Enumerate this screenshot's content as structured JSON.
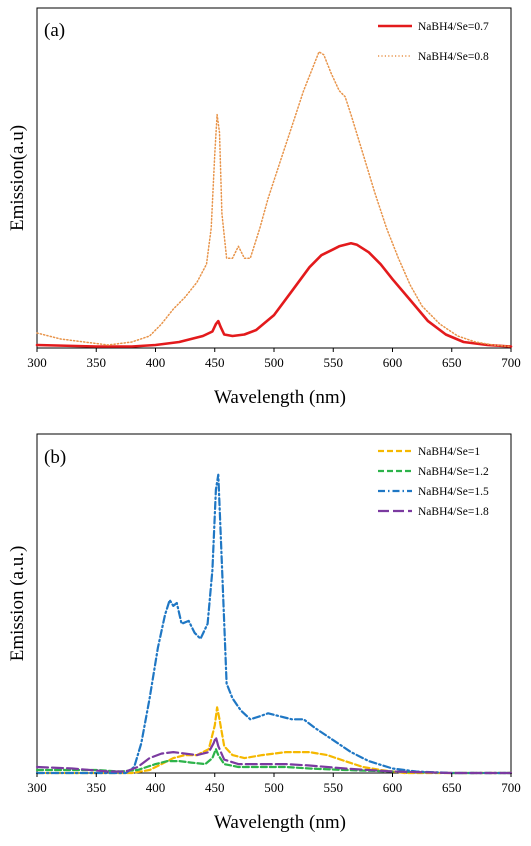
{
  "chart_data": [
    {
      "type": "line",
      "panel_label": "(a)",
      "xlabel": "Wavelength (nm)",
      "ylabel": "Emission(a.u)",
      "xlim": [
        300,
        700
      ],
      "ylim": [
        0,
        1
      ],
      "xticks": [
        300,
        350,
        400,
        450,
        500,
        550,
        600,
        650,
        700
      ],
      "grid": false,
      "legend_position": "top-right",
      "series": [
        {
          "name": "NaBH4/Se=0.7",
          "color": "#e31a1c",
          "style": "solid",
          "points": [
            [
              300,
              0.01
            ],
            [
              350,
              0.005
            ],
            [
              380,
              0.005
            ],
            [
              400,
              0.01
            ],
            [
              420,
              0.02
            ],
            [
              440,
              0.04
            ],
            [
              448,
              0.055
            ],
            [
              451,
              0.08
            ],
            [
              453,
              0.09
            ],
            [
              455,
              0.07
            ],
            [
              458,
              0.045
            ],
            [
              465,
              0.04
            ],
            [
              475,
              0.045
            ],
            [
              485,
              0.06
            ],
            [
              500,
              0.11
            ],
            [
              515,
              0.19
            ],
            [
              530,
              0.27
            ],
            [
              540,
              0.31
            ],
            [
              550,
              0.33
            ],
            [
              555,
              0.34
            ],
            [
              560,
              0.345
            ],
            [
              565,
              0.35
            ],
            [
              570,
              0.345
            ],
            [
              580,
              0.32
            ],
            [
              590,
              0.28
            ],
            [
              600,
              0.23
            ],
            [
              615,
              0.16
            ],
            [
              630,
              0.09
            ],
            [
              645,
              0.045
            ],
            [
              660,
              0.02
            ],
            [
              680,
              0.01
            ],
            [
              700,
              0.005
            ]
          ]
        },
        {
          "name": "NaBH4/Se=0.8",
          "color": "#e8944a",
          "style": "dotted",
          "points": [
            [
              300,
              0.05
            ],
            [
              320,
              0.03
            ],
            [
              340,
              0.02
            ],
            [
              360,
              0.01
            ],
            [
              380,
              0.02
            ],
            [
              395,
              0.04
            ],
            [
              405,
              0.08
            ],
            [
              415,
              0.13
            ],
            [
              425,
              0.17
            ],
            [
              435,
              0.22
            ],
            [
              443,
              0.28
            ],
            [
              447,
              0.4
            ],
            [
              450,
              0.65
            ],
            [
              452,
              0.78
            ],
            [
              454,
              0.72
            ],
            [
              456,
              0.45
            ],
            [
              460,
              0.3
            ],
            [
              465,
              0.3
            ],
            [
              470,
              0.34
            ],
            [
              475,
              0.3
            ],
            [
              480,
              0.3
            ],
            [
              488,
              0.4
            ],
            [
              495,
              0.5
            ],
            [
              505,
              0.62
            ],
            [
              515,
              0.74
            ],
            [
              525,
              0.86
            ],
            [
              533,
              0.94
            ],
            [
              538,
              0.99
            ],
            [
              542,
              0.98
            ],
            [
              548,
              0.92
            ],
            [
              555,
              0.86
            ],
            [
              560,
              0.84
            ],
            [
              565,
              0.78
            ],
            [
              575,
              0.65
            ],
            [
              585,
              0.52
            ],
            [
              595,
              0.4
            ],
            [
              605,
              0.3
            ],
            [
              615,
              0.21
            ],
            [
              625,
              0.14
            ],
            [
              640,
              0.08
            ],
            [
              655,
              0.04
            ],
            [
              670,
              0.02
            ],
            [
              685,
              0.01
            ],
            [
              700,
              0.005
            ]
          ]
        }
      ]
    },
    {
      "type": "line",
      "panel_label": "(b)",
      "xlabel": "Wavelength (nm)",
      "ylabel": "Emission (a.u.)",
      "xlim": [
        300,
        700
      ],
      "ylim": [
        0,
        1
      ],
      "xticks": [
        300,
        350,
        400,
        450,
        500,
        550,
        600,
        650,
        700
      ],
      "grid": false,
      "legend_position": "top-right",
      "series": [
        {
          "name": "NaBH4/Se=1",
          "color": "#f5b800",
          "style": "dash",
          "points": [
            [
              300,
              0.0
            ],
            [
              380,
              0.0
            ],
            [
              395,
              0.01
            ],
            [
              405,
              0.03
            ],
            [
              415,
              0.05
            ],
            [
              425,
              0.06
            ],
            [
              435,
              0.06
            ],
            [
              445,
              0.08
            ],
            [
              450,
              0.16
            ],
            [
              452,
              0.22
            ],
            [
              454,
              0.18
            ],
            [
              458,
              0.09
            ],
            [
              465,
              0.06
            ],
            [
              475,
              0.05
            ],
            [
              490,
              0.06
            ],
            [
              510,
              0.07
            ],
            [
              530,
              0.07
            ],
            [
              545,
              0.06
            ],
            [
              560,
              0.04
            ],
            [
              575,
              0.02
            ],
            [
              590,
              0.01
            ],
            [
              610,
              0.0
            ],
            [
              700,
              0.0
            ]
          ]
        },
        {
          "name": "NaBH4/Se=1.2",
          "color": "#2db34a",
          "style": "dash",
          "points": [
            [
              300,
              0.01
            ],
            [
              350,
              0.01
            ],
            [
              370,
              0.005
            ],
            [
              385,
              0.01
            ],
            [
              400,
              0.03
            ],
            [
              410,
              0.04
            ],
            [
              420,
              0.04
            ],
            [
              430,
              0.035
            ],
            [
              442,
              0.03
            ],
            [
              448,
              0.05
            ],
            [
              451,
              0.08
            ],
            [
              453,
              0.06
            ],
            [
              458,
              0.03
            ],
            [
              470,
              0.02
            ],
            [
              490,
              0.02
            ],
            [
              510,
              0.02
            ],
            [
              530,
              0.015
            ],
            [
              560,
              0.01
            ],
            [
              600,
              0.005
            ],
            [
              650,
              0.0
            ],
            [
              700,
              0.0
            ]
          ]
        },
        {
          "name": "NaBH4/Se=1.5",
          "color": "#1f77c4",
          "style": "dashdot",
          "points": [
            [
              300,
              0.0
            ],
            [
              375,
              0.0
            ],
            [
              382,
              0.02
            ],
            [
              388,
              0.1
            ],
            [
              395,
              0.25
            ],
            [
              402,
              0.42
            ],
            [
              408,
              0.53
            ],
            [
              412,
              0.58
            ],
            [
              415,
              0.56
            ],
            [
              418,
              0.57
            ],
            [
              422,
              0.5
            ],
            [
              428,
              0.51
            ],
            [
              433,
              0.47
            ],
            [
              438,
              0.45
            ],
            [
              444,
              0.5
            ],
            [
              448,
              0.68
            ],
            [
              451,
              0.95
            ],
            [
              453,
              1.0
            ],
            [
              456,
              0.7
            ],
            [
              460,
              0.3
            ],
            [
              465,
              0.25
            ],
            [
              472,
              0.21
            ],
            [
              480,
              0.18
            ],
            [
              488,
              0.19
            ],
            [
              495,
              0.2
            ],
            [
              505,
              0.19
            ],
            [
              515,
              0.18
            ],
            [
              525,
              0.18
            ],
            [
              535,
              0.15
            ],
            [
              550,
              0.11
            ],
            [
              565,
              0.07
            ],
            [
              580,
              0.04
            ],
            [
              600,
              0.015
            ],
            [
              620,
              0.005
            ],
            [
              650,
              0.0
            ],
            [
              700,
              0.0
            ]
          ]
        },
        {
          "name": "NaBH4/Se=1.8",
          "color": "#7b3aa0",
          "style": "longdash",
          "points": [
            [
              300,
              0.02
            ],
            [
              330,
              0.015
            ],
            [
              360,
              0.005
            ],
            [
              375,
              0.005
            ],
            [
              385,
              0.02
            ],
            [
              395,
              0.05
            ],
            [
              405,
              0.065
            ],
            [
              415,
              0.07
            ],
            [
              425,
              0.065
            ],
            [
              435,
              0.06
            ],
            [
              445,
              0.07
            ],
            [
              449,
              0.1
            ],
            [
              451,
              0.12
            ],
            [
              453,
              0.09
            ],
            [
              458,
              0.045
            ],
            [
              470,
              0.03
            ],
            [
              490,
              0.03
            ],
            [
              510,
              0.03
            ],
            [
              530,
              0.025
            ],
            [
              560,
              0.015
            ],
            [
              600,
              0.005
            ],
            [
              650,
              0.0
            ],
            [
              700,
              0.0
            ]
          ]
        }
      ]
    }
  ]
}
